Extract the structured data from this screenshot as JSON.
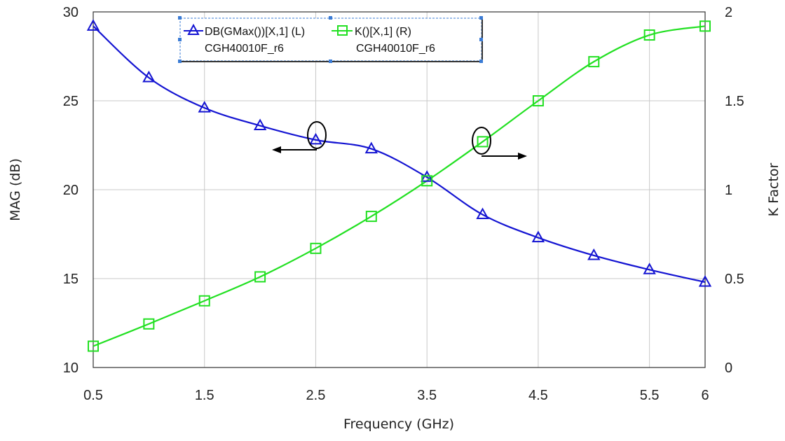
{
  "chart_data": {
    "type": "line",
    "xlabel": "Frequency (GHz)",
    "ylabel_left": "MAG (dB)",
    "ylabel_right": "K Factor",
    "xlim": [
      0.5,
      6
    ],
    "ylim_left": [
      10,
      30
    ],
    "ylim_right": [
      0,
      2
    ],
    "x_ticks": [
      "0.5",
      "1.5",
      "2.5",
      "3.5",
      "4.5",
      "5.5",
      "6"
    ],
    "y_left_ticks": [
      "10",
      "15",
      "20",
      "25",
      "30"
    ],
    "y_right_ticks": [
      "0",
      "0.5",
      "1",
      "1.5",
      "2"
    ],
    "grid": true,
    "legend_position": "top-left",
    "series": [
      {
        "name": "DB(GMax())[X,1] (L)",
        "subname": "CGH40010F_r6",
        "axis": "left",
        "color": "#1414d2",
        "marker": "triangle",
        "x": [
          0.5,
          1.0,
          1.5,
          2.0,
          2.5,
          3.0,
          3.5,
          4.0,
          4.5,
          5.0,
          5.5,
          6.0
        ],
        "values": [
          29.2,
          26.3,
          24.6,
          23.6,
          22.8,
          22.3,
          20.7,
          18.6,
          17.3,
          16.3,
          15.5,
          14.8
        ]
      },
      {
        "name": "K()[X,1] (R)",
        "subname": "CGH40010F_r6",
        "axis": "right",
        "color": "#22e022",
        "marker": "square",
        "x": [
          0.5,
          1.0,
          1.5,
          2.0,
          2.5,
          3.0,
          3.5,
          4.0,
          4.5,
          5.0,
          5.5,
          6.0
        ],
        "values": [
          0.12,
          0.245,
          0.375,
          0.51,
          0.67,
          0.85,
          1.05,
          1.27,
          1.5,
          1.72,
          1.87,
          1.92
        ]
      }
    ]
  }
}
